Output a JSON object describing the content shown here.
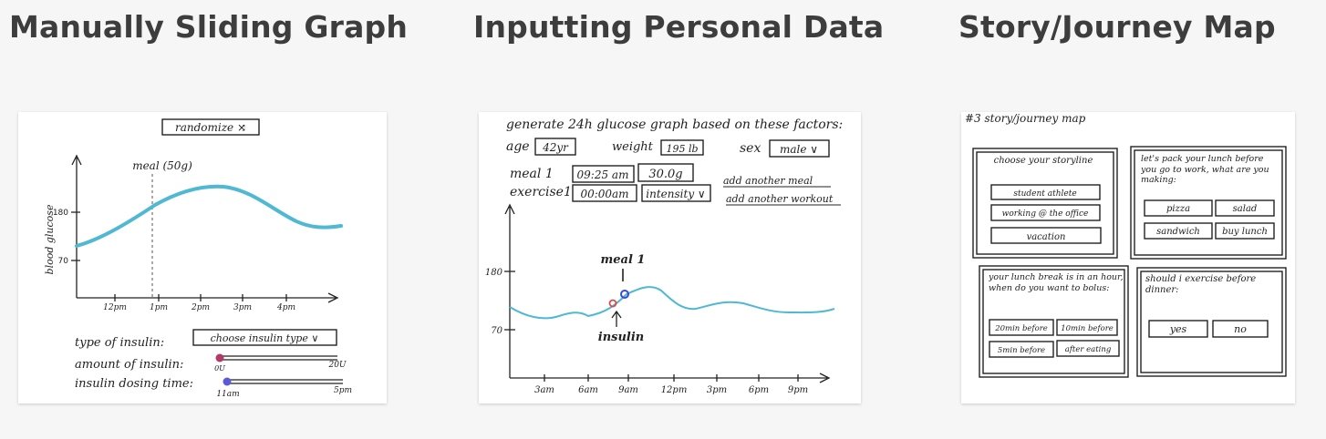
{
  "titles": {
    "sliding": "Manually Sliding Graph",
    "personal": "Inputting Personal Data",
    "story": "Story/Journey Map"
  },
  "sketch1": {
    "randomize": "randomize ⤨",
    "meal_marker": "meal (50g)",
    "ylabel": "blood glucose",
    "y_ticks": [
      "180",
      "70"
    ],
    "x_ticks": [
      "12pm",
      "1pm",
      "2pm",
      "3pm",
      "4pm"
    ],
    "insulin_type_label": "type of insulin:",
    "insulin_type_value": "choose insulin type ∨",
    "amount_label": "amount of insulin:",
    "amount_min": "0U",
    "amount_max": "20U",
    "dosing_label": "insulin dosing time:",
    "dosing_min": "11am",
    "dosing_max": "5pm",
    "curve_color": "#4fb8d2",
    "amount_knob_color": "#b03a6a",
    "dosing_knob_color": "#5a5ad6"
  },
  "sketch2": {
    "heading": "generate 24h glucose graph based on these factors:",
    "age_label": "age",
    "age_value": "42yr",
    "weight_label": "weight",
    "weight_value": "195 lb",
    "sex_label": "sex",
    "sex_value": "male ∨",
    "meal_label": "meal 1",
    "meal_time": "09:25 am",
    "meal_amount": "30.0g",
    "add_meal": "add another meal",
    "exercise_label": "exercise1",
    "exercise_time": "00:00am",
    "intensity": "intensity ∨",
    "add_workout": "add another workout",
    "y_ticks": [
      "180",
      "70"
    ],
    "x_ticks": [
      "3am",
      "6am",
      "9am",
      "12pm",
      "3pm",
      "6pm",
      "9pm"
    ],
    "meal_marker": "meal 1",
    "insulin_marker": "insulin",
    "curve_color": "#4fb8d2",
    "insulin_dot_color": "#d94a4a",
    "meal_dot_color": "#3a4ad6"
  },
  "sketch3": {
    "header": "#3  story/journey map",
    "panel1": {
      "title": "choose your storyline",
      "options": [
        "student athlete",
        "working @ the office",
        "vacation"
      ]
    },
    "panel2": {
      "title": "let's pack your lunch before you go to work, what are you making:",
      "options": [
        "pizza",
        "salad",
        "sandwich",
        "buy lunch"
      ]
    },
    "panel3": {
      "title": "your lunch break is in an hour, when do you want to bolus:",
      "options": [
        "20min before",
        "10min before",
        "5min before",
        "after eating"
      ]
    },
    "panel4": {
      "title": "should i exercise before dinner:",
      "options": [
        "yes",
        "no"
      ]
    }
  }
}
